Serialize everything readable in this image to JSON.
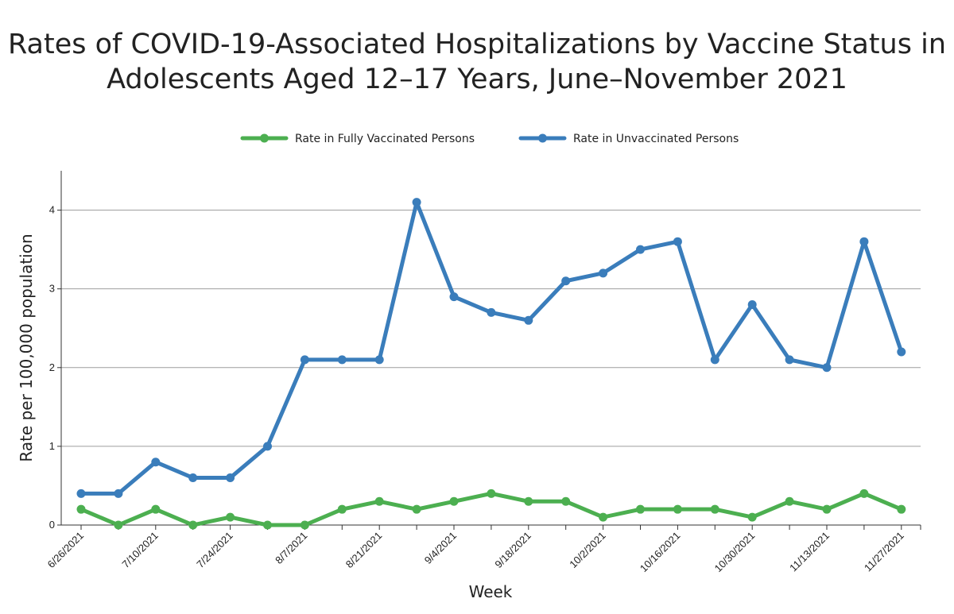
{
  "chart_data": {
    "type": "line",
    "title": "Rates of COVID-19-Associated Hospitalizations by Vaccine Status in",
    "title_line2": "Adolescents Aged 12–17 Years, June–November 2021",
    "xlabel": "Week",
    "ylabel": "Rate per 100,000 population",
    "ylim": [
      0,
      4.5
    ],
    "y_ticks": [
      0,
      1,
      2,
      3,
      4
    ],
    "grid": true,
    "legend_position": "top-center",
    "x": [
      "6/26/2021",
      "7/3/2021",
      "7/10/2021",
      "7/17/2021",
      "7/24/2021",
      "7/31/2021",
      "8/7/2021",
      "8/14/2021",
      "8/21/2021",
      "8/28/2021",
      "9/4/2021",
      "9/11/2021",
      "9/18/2021",
      "9/25/2021",
      "10/2/2021",
      "10/9/2021",
      "10/16/2021",
      "10/23/2021",
      "10/30/2021",
      "11/6/2021",
      "11/13/2021",
      "11/20/2021",
      "11/27/2021"
    ],
    "x_tick_labels": [
      "6/26/2021",
      "7/10/2021",
      "7/24/2021",
      "8/7/2021",
      "8/21/2021",
      "9/4/2021",
      "9/18/2021",
      "10/2/2021",
      "10/16/2021",
      "10/30/2021",
      "11/13/2021",
      "11/27/2021"
    ],
    "series": [
      {
        "name": "Rate in Fully Vaccinated Persons",
        "color": "#4caf50",
        "values": [
          0.2,
          0.0,
          0.2,
          0.0,
          0.1,
          0.0,
          0.0,
          0.2,
          0.3,
          0.2,
          0.3,
          0.4,
          0.3,
          0.3,
          0.1,
          0.2,
          0.2,
          0.2,
          0.1,
          0.3,
          0.2,
          0.4,
          0.2
        ]
      },
      {
        "name": "Rate in Unvaccinated Persons",
        "color": "#3a7dbb",
        "values": [
          0.4,
          0.4,
          0.8,
          0.6,
          0.6,
          1.0,
          2.1,
          2.1,
          2.1,
          4.1,
          2.9,
          2.7,
          2.6,
          3.1,
          3.2,
          3.5,
          3.6,
          2.1,
          2.8,
          2.1,
          2.0,
          3.6,
          2.2
        ]
      }
    ]
  }
}
